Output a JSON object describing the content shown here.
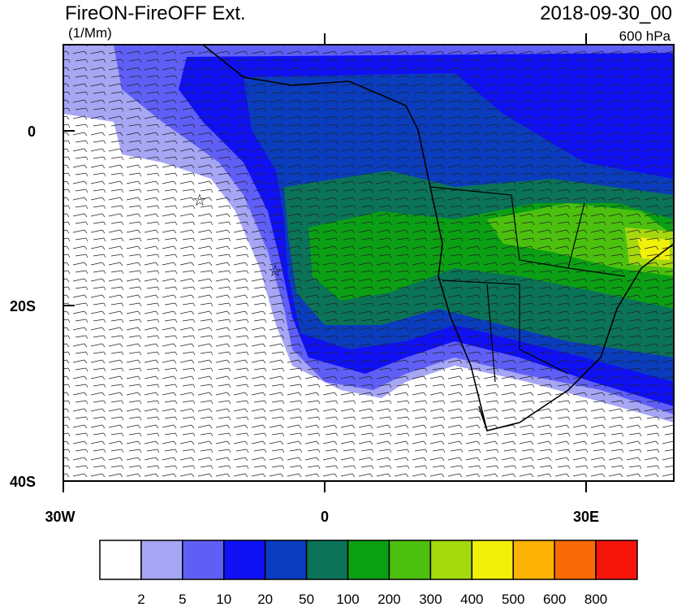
{
  "title": "FireON-FireOFF Ext.",
  "units": "(1/Mm)",
  "date": "2018-09-30_00",
  "level": "600 hPa",
  "map": {
    "lat_labels": [
      "0",
      "20S",
      "40S"
    ],
    "lon_labels": [
      "30W",
      "0",
      "30E"
    ]
  },
  "colorbar": {
    "colors": [
      "#ffffff",
      "#a6a6f5",
      "#5f5ff7",
      "#1010f5",
      "#0a3cbe",
      "#0a7358",
      "#0ba014",
      "#4cc00e",
      "#a6d80e",
      "#f0f00a",
      "#fbb204",
      "#f96a08",
      "#f5140a"
    ],
    "labels": [
      2,
      5,
      10,
      20,
      50,
      100,
      200,
      300,
      400,
      500,
      600,
      800
    ]
  }
}
